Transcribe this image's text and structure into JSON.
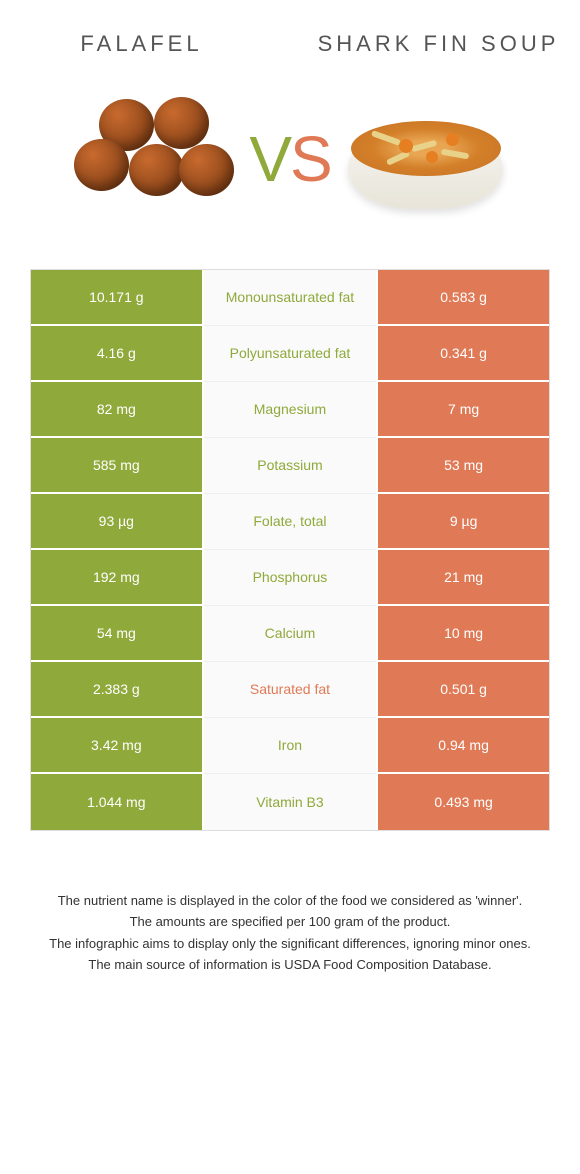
{
  "colors": {
    "left": "#8fa93a",
    "right": "#e07a56",
    "background": "#ffffff",
    "mid_bg": "#fafafa",
    "header_text": "#555555"
  },
  "header": {
    "left_title": "Falafel",
    "right_title": "Shark fin soup",
    "vs_v": "V",
    "vs_s": "S"
  },
  "rows": [
    {
      "left": "10.171 g",
      "label": "Monounsaturated fat",
      "right": "0.583 g",
      "winner": "left"
    },
    {
      "left": "4.16 g",
      "label": "Polyunsaturated fat",
      "right": "0.341 g",
      "winner": "left"
    },
    {
      "left": "82 mg",
      "label": "Magnesium",
      "right": "7 mg",
      "winner": "left"
    },
    {
      "left": "585 mg",
      "label": "Potassium",
      "right": "53 mg",
      "winner": "left"
    },
    {
      "left": "93 µg",
      "label": "Folate, total",
      "right": "9 µg",
      "winner": "left"
    },
    {
      "left": "192 mg",
      "label": "Phosphorus",
      "right": "21 mg",
      "winner": "left"
    },
    {
      "left": "54 mg",
      "label": "Calcium",
      "right": "10 mg",
      "winner": "left"
    },
    {
      "left": "2.383 g",
      "label": "Saturated fat",
      "right": "0.501 g",
      "winner": "right"
    },
    {
      "left": "3.42 mg",
      "label": "Iron",
      "right": "0.94 mg",
      "winner": "left"
    },
    {
      "left": "1.044 mg",
      "label": "Vitamin B3",
      "right": "0.493 mg",
      "winner": "left"
    }
  ],
  "footnotes": [
    "The nutrient name is displayed in the color of the food we considered as 'winner'.",
    "The amounts are specified per 100 gram of the product.",
    "The infographic aims to display only the significant differences, ignoring minor ones.",
    "The main source of information is USDA Food Composition Database."
  ]
}
